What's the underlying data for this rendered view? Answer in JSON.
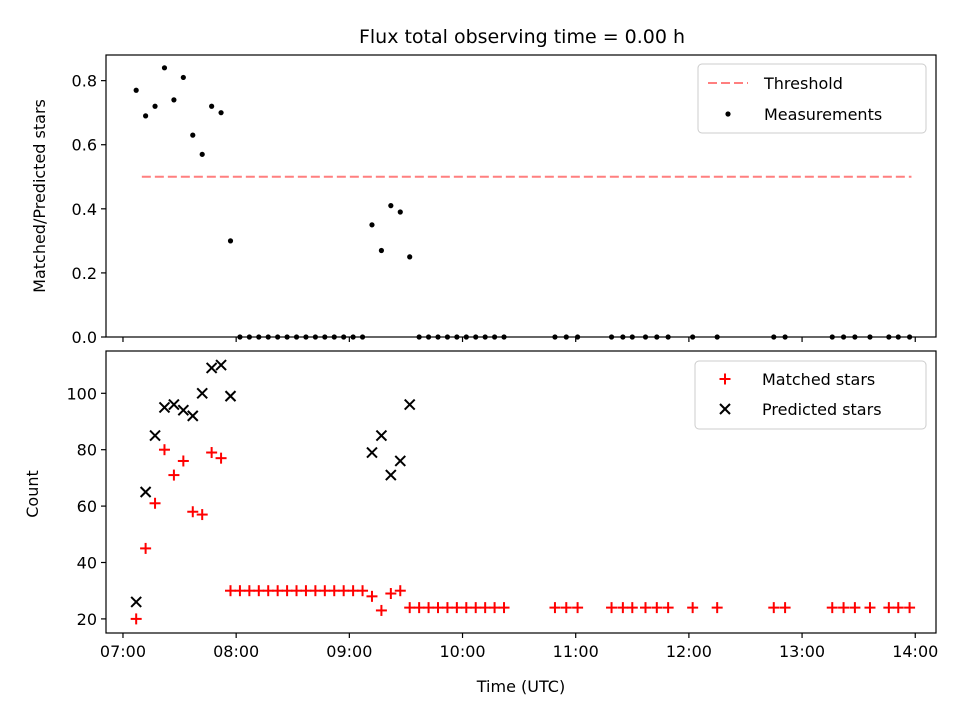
{
  "chart_data": {
    "title": "Flux total observing time = 0.00 h",
    "xlabel": "Time (UTC)",
    "xticks": [
      "07:00",
      "08:00",
      "09:00",
      "10:00",
      "11:00",
      "12:00",
      "13:00",
      "14:00"
    ],
    "xlim": [
      "06:51",
      "14:11"
    ],
    "panels": [
      {
        "type": "scatter",
        "ylabel": "Matched/Predicted stars",
        "ylim": [
          0,
          0.88
        ],
        "yticks": [
          0.0,
          0.2,
          0.4,
          0.6,
          0.8
        ],
        "legend_position": "top-right",
        "threshold": {
          "name": "Threshold",
          "value": 0.5,
          "x_start": "07:10",
          "x_end": "13:58",
          "color": "#ff7f7f"
        },
        "series": [
          {
            "name": "Measurements",
            "color": "#000000",
            "marker": "dot",
            "x": [
              "07:07",
              "07:12",
              "07:17",
              "07:22",
              "07:27",
              "07:32",
              "07:37",
              "07:42",
              "07:47",
              "07:52",
              "07:57",
              "08:02",
              "08:07",
              "08:12",
              "08:17",
              "08:22",
              "08:27",
              "08:32",
              "08:37",
              "08:42",
              "08:47",
              "08:52",
              "08:57",
              "09:02",
              "09:07",
              "09:12",
              "09:17",
              "09:22",
              "09:27",
              "09:32",
              "09:37",
              "09:42",
              "09:47",
              "09:52",
              "09:57",
              "10:02",
              "10:07",
              "10:12",
              "10:17",
              "10:22",
              "10:49",
              "10:55",
              "11:01",
              "11:19",
              "11:25",
              "11:30",
              "11:37",
              "11:43",
              "11:49",
              "12:02",
              "12:15",
              "12:45",
              "12:51",
              "13:16",
              "13:22",
              "13:28",
              "13:36",
              "13:46",
              "13:51",
              "13:57"
            ],
            "y": [
              0.77,
              0.69,
              0.72,
              0.84,
              0.74,
              0.81,
              0.63,
              0.57,
              0.72,
              0.7,
              0.3,
              0,
              0,
              0,
              0,
              0,
              0,
              0,
              0,
              0,
              0,
              0,
              0,
              0,
              0,
              0.35,
              0.27,
              0.41,
              0.39,
              0.25,
              0,
              0,
              0,
              0,
              0,
              0,
              0,
              0,
              0,
              0,
              0,
              0,
              0,
              0,
              0,
              0,
              0,
              0,
              0,
              0,
              0,
              0,
              0,
              0,
              0,
              0,
              0,
              0,
              0,
              0
            ]
          }
        ]
      },
      {
        "type": "scatter",
        "ylabel": "Count",
        "ylim": [
          15,
          115
        ],
        "yticks": [
          20,
          40,
          60,
          80,
          100
        ],
        "legend_position": "top-right",
        "series": [
          {
            "name": "Matched stars",
            "color": "#ff0000",
            "marker": "plus",
            "x": [
              "07:07",
              "07:12",
              "07:17",
              "07:22",
              "07:27",
              "07:32",
              "07:37",
              "07:42",
              "07:47",
              "07:52",
              "07:57",
              "08:02",
              "08:07",
              "08:12",
              "08:17",
              "08:22",
              "08:27",
              "08:32",
              "08:37",
              "08:42",
              "08:47",
              "08:52",
              "08:57",
              "09:02",
              "09:07",
              "09:12",
              "09:17",
              "09:22",
              "09:27",
              "09:32",
              "09:37",
              "09:42",
              "09:47",
              "09:52",
              "09:57",
              "10:02",
              "10:07",
              "10:12",
              "10:17",
              "10:22",
              "10:49",
              "10:55",
              "11:01",
              "11:19",
              "11:25",
              "11:30",
              "11:37",
              "11:43",
              "11:49",
              "12:02",
              "12:15",
              "12:45",
              "12:51",
              "13:16",
              "13:22",
              "13:28",
              "13:36",
              "13:46",
              "13:51",
              "13:57"
            ],
            "y": [
              20,
              45,
              61,
              80,
              71,
              76,
              58,
              57,
              79,
              77,
              30,
              30,
              30,
              30,
              30,
              30,
              30,
              30,
              30,
              30,
              30,
              30,
              30,
              30,
              30,
              28,
              23,
              29,
              30,
              24,
              24,
              24,
              24,
              24,
              24,
              24,
              24,
              24,
              24,
              24,
              24,
              24,
              24,
              24,
              24,
              24,
              24,
              24,
              24,
              24,
              24,
              24,
              24,
              24,
              24,
              24,
              24,
              24,
              24,
              24
            ]
          },
          {
            "name": "Predicted stars",
            "color": "#000000",
            "marker": "x",
            "x": [
              "07:07",
              "07:12",
              "07:17",
              "07:22",
              "07:27",
              "07:32",
              "07:37",
              "07:42",
              "07:47",
              "07:52",
              "07:57",
              "09:12",
              "09:17",
              "09:22",
              "09:27",
              "09:32"
            ],
            "y": [
              26,
              65,
              85,
              95,
              96,
              94,
              92,
              100,
              109,
              110,
              99,
              79,
              85,
              71,
              76,
              96
            ]
          }
        ]
      }
    ]
  }
}
